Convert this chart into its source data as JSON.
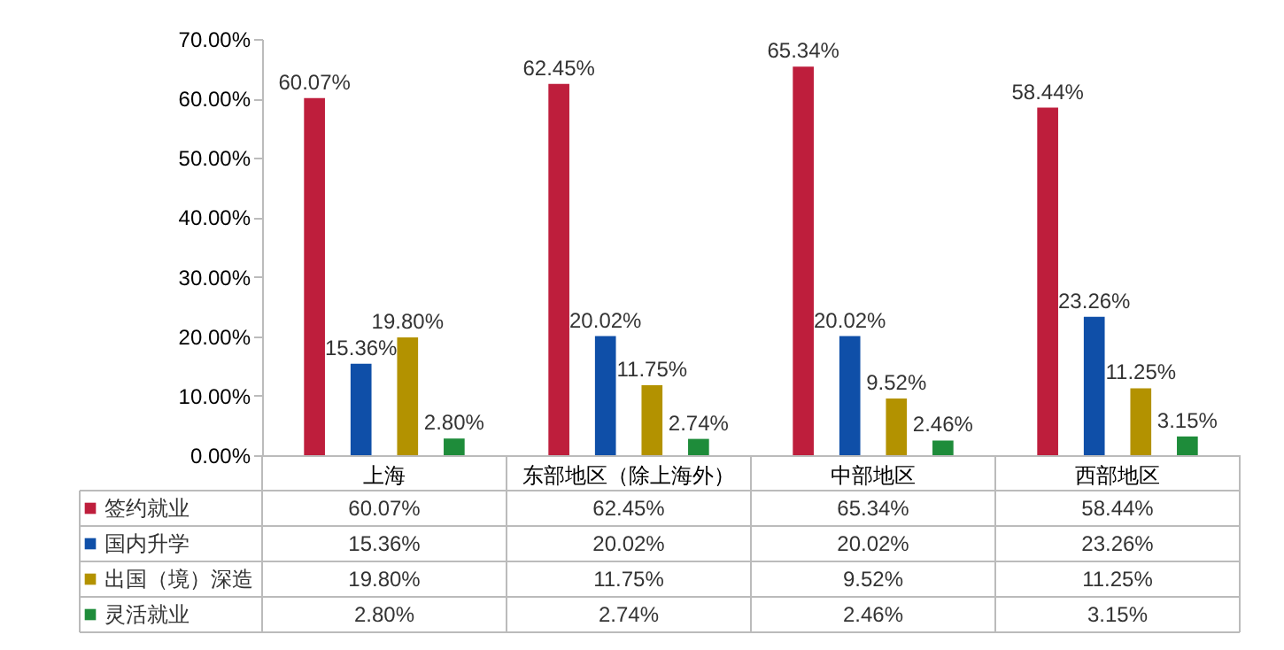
{
  "chart_data": {
    "type": "bar",
    "categories": [
      "上海",
      "东部地区（除上海外）",
      "中部地区",
      "西部地区"
    ],
    "series": [
      {
        "name": "签约就业",
        "color": "#be1e3c",
        "values": [
          60.07,
          62.45,
          65.34,
          58.44
        ],
        "value_labels": [
          "60.07%",
          "62.45%",
          "65.34%",
          "58.44%"
        ]
      },
      {
        "name": "国内升学",
        "color": "#0f4fa8",
        "values": [
          15.36,
          20.02,
          20.02,
          23.26
        ],
        "value_labels": [
          "15.36%",
          "20.02%",
          "20.02%",
          "23.26%"
        ]
      },
      {
        "name": "出国（境）深造",
        "color": "#b39200",
        "values": [
          19.8,
          11.75,
          9.52,
          11.25
        ],
        "value_labels": [
          "19.80%",
          "11.75%",
          "9.52%",
          "11.25%"
        ]
      },
      {
        "name": "灵活就业",
        "color": "#1e8c3a",
        "values": [
          2.8,
          2.74,
          2.46,
          3.15
        ],
        "value_labels": [
          "2.80%",
          "2.74%",
          "2.46%",
          "3.15%"
        ]
      }
    ],
    "ylim": [
      0,
      70
    ],
    "yticks": [
      {
        "value": 0,
        "label": "0.00%"
      },
      {
        "value": 10,
        "label": "10.00%"
      },
      {
        "value": 20,
        "label": "20.00%"
      },
      {
        "value": 30,
        "label": "30.00%"
      },
      {
        "value": 40,
        "label": "40.00%"
      },
      {
        "value": 50,
        "label": "50.00%"
      },
      {
        "value": 60,
        "label": "60.00%"
      },
      {
        "value": 70,
        "label": "70.00%"
      }
    ],
    "grid": false,
    "legend": "bottom"
  }
}
